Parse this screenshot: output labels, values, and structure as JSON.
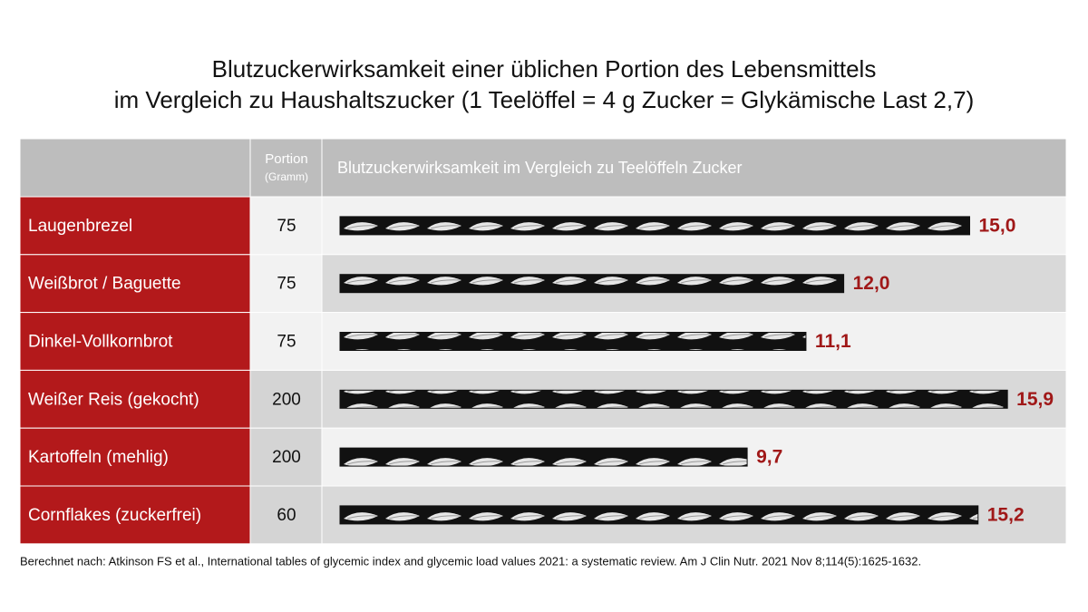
{
  "chart_data": {
    "type": "bar",
    "title": "Blutzuckerwirksamkeit einer üblichen Portion des Lebensmittels",
    "subtitle": "im Vergleich zu Haushaltszucker (1 Teelöffel = 4 g Zucker = Glykämische Last 2,7)",
    "header": {
      "portion": "Portion",
      "portion_unit": "(Gramm)",
      "bars": "Blutzuckerwirksamkeit im Vergleich zu Teelöffeln Zucker"
    },
    "categories": [
      "Laugenbrezel",
      "Weißbrot / Baguette",
      "Dinkel-Vollkornbrot",
      "Weißer Reis (gekocht)",
      "Kartoffeln (mehlig)",
      "Cornflakes (zuckerfrei)"
    ],
    "portions": [
      75,
      75,
      75,
      200,
      200,
      60
    ],
    "values": [
      15.0,
      12.0,
      11.1,
      15.9,
      9.7,
      15.2
    ],
    "value_labels": [
      "15,0",
      "12,0",
      "11,1",
      "15,9",
      "9,7",
      "15,2"
    ],
    "color": "#111111",
    "label_color": "#a01818",
    "source": "Berechnet nach: Atkinson FS et al., International tables of glycemic index and glycemic load values 2021: a systematic review. Am J Clin Nutr. 2021 Nov 8;114(5):1625-1632."
  }
}
